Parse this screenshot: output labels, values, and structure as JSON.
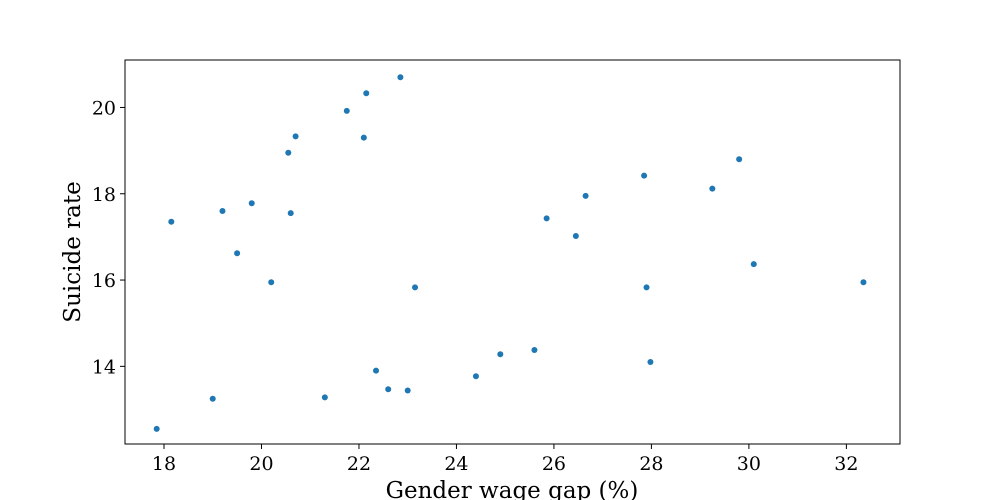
{
  "chart_data": {
    "type": "scatter",
    "title": "",
    "xlabel": "Gender wage gap (%)",
    "ylabel": "Suicide rate",
    "xlim": [
      17.2,
      33.1
    ],
    "ylim": [
      12.2,
      21.1
    ],
    "xticks": [
      18,
      20,
      22,
      24,
      26,
      28,
      30,
      32
    ],
    "yticks": [
      14,
      16,
      18,
      20
    ],
    "grid": false,
    "color": "#1f77b4",
    "points": [
      {
        "x": 17.85,
        "y": 12.55
      },
      {
        "x": 18.15,
        "y": 17.35
      },
      {
        "x": 19.0,
        "y": 13.25
      },
      {
        "x": 19.2,
        "y": 17.6
      },
      {
        "x": 19.5,
        "y": 16.62
      },
      {
        "x": 19.8,
        "y": 17.78
      },
      {
        "x": 20.2,
        "y": 15.95
      },
      {
        "x": 20.55,
        "y": 18.95
      },
      {
        "x": 20.6,
        "y": 17.55
      },
      {
        "x": 20.7,
        "y": 19.33
      },
      {
        "x": 21.3,
        "y": 13.28
      },
      {
        "x": 21.75,
        "y": 19.92
      },
      {
        "x": 22.1,
        "y": 19.3
      },
      {
        "x": 22.15,
        "y": 20.33
      },
      {
        "x": 22.35,
        "y": 13.9
      },
      {
        "x": 22.6,
        "y": 13.47
      },
      {
        "x": 22.85,
        "y": 20.7
      },
      {
        "x": 23.0,
        "y": 13.44
      },
      {
        "x": 23.15,
        "y": 15.83
      },
      {
        "x": 24.4,
        "y": 13.77
      },
      {
        "x": 24.9,
        "y": 14.28
      },
      {
        "x": 25.6,
        "y": 14.38
      },
      {
        "x": 25.85,
        "y": 17.43
      },
      {
        "x": 26.45,
        "y": 17.02
      },
      {
        "x": 26.65,
        "y": 17.95
      },
      {
        "x": 27.85,
        "y": 18.42
      },
      {
        "x": 27.9,
        "y": 15.83
      },
      {
        "x": 27.98,
        "y": 14.1
      },
      {
        "x": 29.25,
        "y": 18.12
      },
      {
        "x": 29.8,
        "y": 18.8
      },
      {
        "x": 30.1,
        "y": 16.37
      },
      {
        "x": 32.35,
        "y": 15.95
      }
    ]
  }
}
